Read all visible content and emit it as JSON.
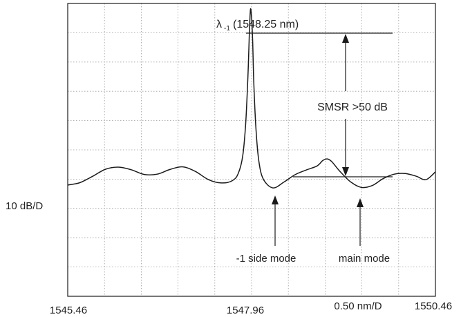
{
  "chart_data": {
    "type": "line",
    "title": "",
    "xlabel": "",
    "ylabel": "",
    "x_tick_labels": [
      "1545.46",
      "1547.96",
      "1550.46"
    ],
    "x_scale_label": "0.50 nm/D",
    "y_scale_label": "10 dB/D",
    "xlim": [
      1545.46,
      1550.46
    ],
    "x_divisions": 10,
    "y_divisions": 10,
    "grid": true,
    "series": [
      {
        "points": [
          [
            1545.46,
            -5.7
          ],
          [
            1545.625,
            -5.62
          ],
          [
            1545.8,
            -5.4
          ],
          [
            1545.975,
            -5.16
          ],
          [
            1546.15,
            -5.09
          ],
          [
            1546.325,
            -5.18
          ],
          [
            1546.5,
            -5.34
          ],
          [
            1546.675,
            -5.33
          ],
          [
            1546.85,
            -5.17
          ],
          [
            1547.025,
            -5.08
          ],
          [
            1547.2,
            -5.24
          ],
          [
            1547.375,
            -5.52
          ],
          [
            1547.55,
            -5.63
          ],
          [
            1547.7,
            -5.55
          ],
          [
            1547.78,
            -5.3
          ],
          [
            1547.84,
            -4.7
          ],
          [
            1547.88,
            -3.6
          ],
          [
            1547.91,
            -2.0
          ],
          [
            1547.93,
            -0.5
          ],
          [
            1547.945,
            0.3
          ],
          [
            1547.96,
            0.0
          ],
          [
            1547.975,
            -0.8
          ],
          [
            1547.99,
            -2.2
          ],
          [
            1548.02,
            -3.8
          ],
          [
            1548.06,
            -4.9
          ],
          [
            1548.12,
            -5.5
          ],
          [
            1548.25,
            -5.8
          ],
          [
            1548.4,
            -5.6
          ],
          [
            1548.55,
            -5.35
          ],
          [
            1548.7,
            -5.19
          ],
          [
            1548.85,
            -5.05
          ],
          [
            1548.93,
            -4.86
          ],
          [
            1548.99,
            -4.81
          ],
          [
            1549.05,
            -4.9
          ],
          [
            1549.15,
            -5.2
          ],
          [
            1549.3,
            -5.58
          ],
          [
            1549.45,
            -5.78
          ],
          [
            1549.6,
            -5.72
          ],
          [
            1549.75,
            -5.48
          ],
          [
            1549.9,
            -5.33
          ],
          [
            1550.05,
            -5.31
          ],
          [
            1550.2,
            -5.4
          ],
          [
            1550.33,
            -5.52
          ],
          [
            1550.46,
            -5.25
          ]
        ]
      }
    ],
    "annotations": {
      "peak_label": "(1548.25 nm)",
      "lambda_symbol": "λ",
      "lambda_subscript": "-1",
      "smsr_label": "SMSR >50 dB",
      "side_mode_label": "-1 side mode",
      "main_mode_label": "main mode"
    }
  }
}
